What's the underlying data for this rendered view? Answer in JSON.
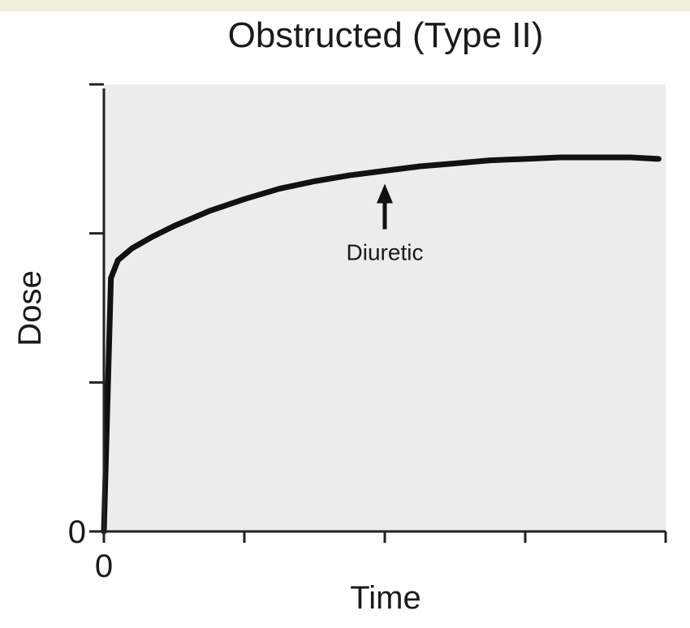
{
  "chart_data": {
    "type": "line",
    "title": "Obstructed (Type II)",
    "xlabel": "Time",
    "ylabel": "Dose",
    "x_tick_labels": [
      "0"
    ],
    "y_tick_labels": [
      "0"
    ],
    "xlim": [
      0,
      4
    ],
    "ylim": [
      0,
      3
    ],
    "x_ticks": [
      0,
      1,
      2,
      3,
      4
    ],
    "y_ticks": [
      0,
      1,
      2,
      3
    ],
    "grid": false,
    "background": "#ececec",
    "series": [
      {
        "color": "#111111",
        "x": [
          0,
          0.05,
          0.1,
          0.2,
          0.35,
          0.5,
          0.75,
          1.0,
          1.25,
          1.5,
          1.75,
          2.0,
          2.25,
          2.5,
          2.75,
          3.0,
          3.25,
          3.5,
          3.75,
          3.95
        ],
        "y": [
          0,
          1.7,
          1.82,
          1.9,
          1.98,
          2.05,
          2.15,
          2.23,
          2.3,
          2.35,
          2.39,
          2.42,
          2.45,
          2.47,
          2.49,
          2.5,
          2.51,
          2.51,
          2.51,
          2.5
        ]
      }
    ],
    "annotations": [
      {
        "text": "Diuretic",
        "x": 2.0,
        "y": 2.42
      }
    ]
  }
}
